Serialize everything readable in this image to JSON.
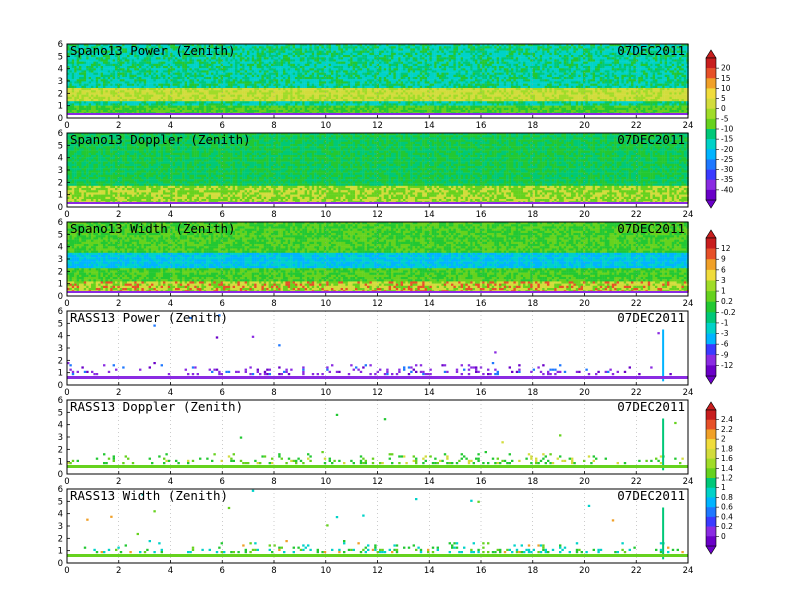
{
  "date_label": "07DEC2011",
  "colors": {
    "palette": [
      "#6a00c8",
      "#8a2be2",
      "#3a3aff",
      "#1e78ff",
      "#00b4ff",
      "#00d2c8",
      "#00c878",
      "#22c832",
      "#66d21e",
      "#a0dc28",
      "#d2dc3c",
      "#f0dc3c",
      "#f0a028",
      "#e65028",
      "#c81e1e"
    ],
    "background_band": "#2ec83c"
  },
  "chart_data": [
    {
      "type": "heatmap",
      "title": "Spano13 Power (Zenith)",
      "x_ticks": [
        "0",
        "2",
        "4",
        "6",
        "8",
        "10",
        "12",
        "14",
        "16",
        "18",
        "20",
        "22",
        "24"
      ],
      "y_ticks": [
        "0",
        "1",
        "2",
        "3",
        "4",
        "5",
        "6"
      ],
      "xlim": [
        0,
        24
      ],
      "ylim": [
        0,
        6
      ],
      "colorbar_ref": 0
    },
    {
      "type": "heatmap",
      "title": "Spano13 Doppler (Zenith)",
      "x_ticks": [
        "0",
        "2",
        "4",
        "6",
        "8",
        "10",
        "12",
        "14",
        "16",
        "18",
        "20",
        "22",
        "24"
      ],
      "y_ticks": [
        "0",
        "1",
        "2",
        "3",
        "4",
        "5",
        "6"
      ],
      "xlim": [
        0,
        24
      ],
      "ylim": [
        0,
        6
      ],
      "colorbar_ref": 0
    },
    {
      "type": "heatmap",
      "title": "Spano13 Width (Zenith)",
      "x_ticks": [
        "0",
        "2",
        "4",
        "6",
        "8",
        "10",
        "12",
        "14",
        "16",
        "18",
        "20",
        "22",
        "24"
      ],
      "y_ticks": [
        "0",
        "1",
        "2",
        "3",
        "4",
        "5",
        "6"
      ],
      "xlim": [
        0,
        24
      ],
      "ylim": [
        0,
        6
      ],
      "colorbar_ref": 1
    },
    {
      "type": "heatmap",
      "title": "RASS13 Power (Zenith)",
      "x_ticks": [
        "0",
        "2",
        "4",
        "6",
        "8",
        "10",
        "12",
        "14",
        "16",
        "18",
        "20",
        "22",
        "24"
      ],
      "y_ticks": [
        "0",
        "1",
        "2",
        "3",
        "4",
        "5",
        "6"
      ],
      "xlim": [
        0,
        24
      ],
      "ylim": [
        0,
        6
      ],
      "colorbar_ref": 1
    },
    {
      "type": "heatmap",
      "title": "RASS13 Doppler (Zenith)",
      "x_ticks": [
        "0",
        "2",
        "4",
        "6",
        "8",
        "10",
        "12",
        "14",
        "16",
        "18",
        "20",
        "22",
        "24"
      ],
      "y_ticks": [
        "0",
        "1",
        "2",
        "3",
        "4",
        "5",
        "6"
      ],
      "xlim": [
        0,
        24
      ],
      "ylim": [
        0,
        6
      ],
      "colorbar_ref": 2
    },
    {
      "type": "heatmap",
      "title": "RASS13 Width (Zenith)",
      "x_ticks": [
        "0",
        "2",
        "4",
        "6",
        "8",
        "10",
        "12",
        "14",
        "16",
        "18",
        "20",
        "22",
        "24"
      ],
      "y_ticks": [
        "0",
        "1",
        "2",
        "3",
        "4",
        "5",
        "6"
      ],
      "xlim": [
        0,
        24
      ],
      "ylim": [
        0,
        6
      ],
      "colorbar_ref": 2
    }
  ],
  "colorbars": [
    {
      "labels": [
        "20",
        "15",
        "10",
        "5",
        "0",
        "-5",
        "-10",
        "-15",
        "-20",
        "-25",
        "-30",
        "-35",
        "-40"
      ]
    },
    {
      "labels": [
        "12",
        "9",
        "6",
        "3",
        "1",
        "0.2",
        "-0.2",
        "-1",
        "-3",
        "-6",
        "-9",
        "-12"
      ]
    },
    {
      "labels": [
        "2.4",
        "2.2",
        "2",
        "1.8",
        "1.6",
        "1.4",
        "1.2",
        "1",
        "0.8",
        "0.6",
        "0.4",
        "0.2",
        "0"
      ]
    }
  ]
}
